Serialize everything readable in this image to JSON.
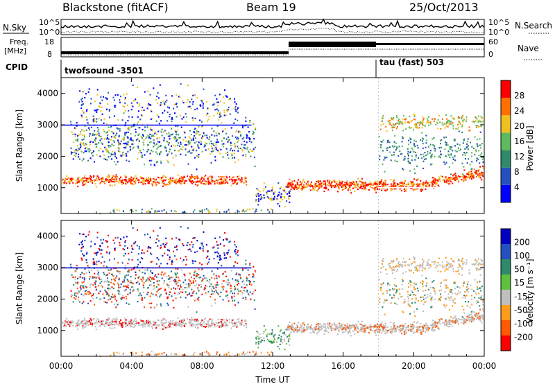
{
  "header": {
    "station": "Blackstone (fitACF)",
    "beam": "Beam 19",
    "date": "25/Oct/2013"
  },
  "noise_panel": {
    "left_label": "N.Sky",
    "right_label": "N.Search",
    "scale_top": "10^5",
    "scale_bottom": "10^0"
  },
  "freq_panel": {
    "left_label_1": "Freq.",
    "left_label_2": "[MHz]",
    "left_ticks": [
      "18",
      "8"
    ],
    "right_label": "Nave",
    "right_ticks": [
      "60",
      "0"
    ]
  },
  "cpid": {
    "label": "CPID",
    "modes": [
      {
        "name": "twofsound",
        "id": "-3501",
        "text": "twofsound  -3501"
      },
      {
        "name": "tau (fast)",
        "id": "503",
        "text": "tau (fast) 503"
      }
    ]
  },
  "x_axis": {
    "label": "Time UT",
    "ticks": [
      "00:00",
      "04:00",
      "08:00",
      "12:00",
      "16:00",
      "20:00",
      "00:00"
    ]
  },
  "chart_data": [
    {
      "type": "heatmap",
      "panel": "power",
      "ylabel": "Slant Range [km]",
      "yticks": [
        "4000",
        "3000",
        "2000",
        "1000"
      ],
      "ylim": [
        180,
        4500
      ],
      "xlim_hours": [
        0,
        24
      ],
      "colorbar": {
        "label": "Power [dB]",
        "ticks": [
          "28",
          "24",
          "20",
          "16",
          "12",
          "8",
          "4"
        ],
        "colors": [
          "#0000ff",
          "#2450c0",
          "#2f8a6a",
          "#5fba5f",
          "#f0c020",
          "#ff7000",
          "#ff0000"
        ]
      },
      "features": [
        {
          "name": "main echo band",
          "hours": [
            0,
            10.5
          ],
          "range_km": [
            1150,
            1350
          ]
        },
        {
          "name": "high echo band",
          "hours": [
            0,
            11
          ],
          "range_km": [
            2300,
            3700
          ]
        },
        {
          "name": "evening band",
          "hours": [
            12.5,
            24
          ],
          "range_km": [
            900,
            1350
          ]
        },
        {
          "name": "upper band",
          "hours": [
            18,
            24
          ],
          "range_km": [
            2900,
            3300
          ]
        }
      ]
    },
    {
      "type": "heatmap",
      "panel": "velocity",
      "ylabel": "Slant Range [km]",
      "yticks": [
        "4000",
        "3000",
        "2000",
        "1000"
      ],
      "ylim": [
        180,
        4500
      ],
      "xlim_hours": [
        0,
        24
      ],
      "colorbar": {
        "label": "Velocity [m s⁻¹]",
        "ticks": [
          "200",
          "100",
          "50",
          "15",
          "-15",
          "-50",
          "-100",
          "-200"
        ],
        "colors": [
          "#ff0000",
          "#ff5a00",
          "#ff9b1a",
          "#bfbfbf",
          "#5fc040",
          "#2f8a6a",
          "#2450c0",
          "#0000c0"
        ]
      }
    }
  ]
}
